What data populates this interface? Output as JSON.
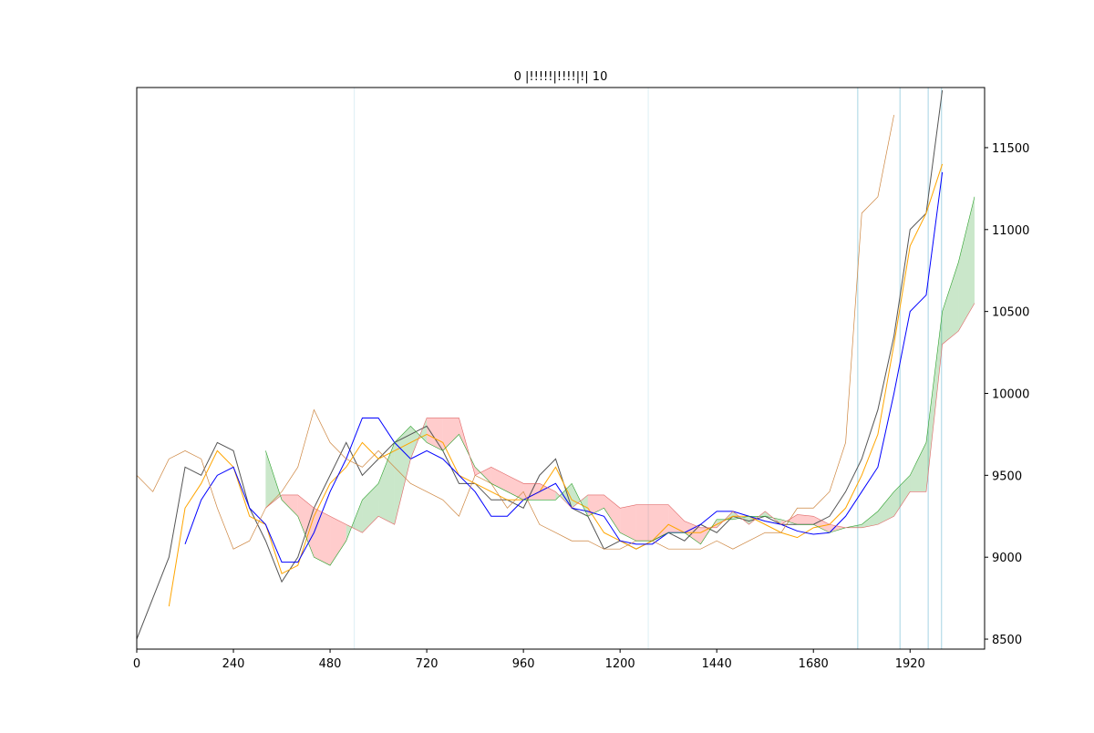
{
  "chart_data": {
    "type": "ichimoku",
    "title": "0 |!!!!!|!!!!|!| 10",
    "x": [
      0,
      40,
      80,
      120,
      160,
      200,
      240,
      280,
      320,
      360,
      400,
      440,
      480,
      520,
      560,
      600,
      640,
      680,
      720,
      760,
      800,
      840,
      880,
      920,
      960,
      1000,
      1040,
      1080,
      1120,
      1160,
      1200,
      1240,
      1280,
      1320,
      1360,
      1400,
      1440,
      1480,
      1520,
      1560,
      1600,
      1640,
      1680,
      1720,
      1760,
      1800,
      1840,
      1880,
      1920,
      1960,
      2000,
      2040,
      2080
    ],
    "series": [
      {
        "name": "close",
        "color": "#555555",
        "values": [
          8500,
          8750,
          9000,
          9550,
          9500,
          9700,
          9650,
          9300,
          9100,
          8850,
          9000,
          9300,
          9500,
          9700,
          9500,
          9600,
          9700,
          9750,
          9800,
          9650,
          9450,
          9450,
          9350,
          9350,
          9300,
          9500,
          9600,
          9300,
          9250,
          9050,
          9100,
          9050,
          9100,
          9150,
          9100,
          9200,
          9150,
          9250,
          9220,
          9250,
          9200,
          9200,
          9200,
          9250,
          9400,
          9600,
          9900,
          10350,
          11000,
          11100,
          11850,
          null,
          null
        ]
      },
      {
        "name": "tenkan",
        "color": "orange",
        "values": [
          null,
          null,
          8700,
          9300,
          9450,
          9650,
          9550,
          9250,
          9200,
          8900,
          8950,
          9250,
          9450,
          9550,
          9700,
          9600,
          9650,
          9700,
          9750,
          9700,
          9500,
          9450,
          9400,
          9350,
          9350,
          9400,
          9550,
          9350,
          9300,
          9150,
          9100,
          9050,
          9100,
          9200,
          9150,
          9150,
          9200,
          9250,
          9250,
          9200,
          9150,
          9120,
          9180,
          9200,
          9300,
          9500,
          9750,
          10300,
          10900,
          11100,
          11400,
          null,
          null
        ]
      },
      {
        "name": "kijun",
        "color": "blue",
        "values": [
          null,
          null,
          null,
          9080,
          9350,
          9500,
          9550,
          9300,
          9200,
          8970,
          8970,
          9150,
          9400,
          9600,
          9850,
          9850,
          9700,
          9600,
          9650,
          9600,
          9500,
          9400,
          9250,
          9250,
          9350,
          9400,
          9450,
          9300,
          9280,
          9250,
          9100,
          9080,
          9080,
          9150,
          9150,
          9200,
          9280,
          9280,
          9250,
          9220,
          9200,
          9160,
          9140,
          9150,
          9250,
          9400,
          9550,
          10000,
          10500,
          10600,
          11350,
          null,
          null
        ]
      },
      {
        "name": "chikou",
        "color": "peru",
        "values": [
          9500,
          9400,
          9600,
          9650,
          9600,
          9300,
          9050,
          9100,
          9300,
          9400,
          9550,
          9900,
          9700,
          9600,
          9550,
          9650,
          9550,
          9450,
          9400,
          9350,
          9250,
          9500,
          9450,
          9300,
          9400,
          9200,
          9150,
          9100,
          9100,
          9050,
          9050,
          9100,
          9100,
          9050,
          9050,
          9050,
          9100,
          9050,
          9100,
          9150,
          9150,
          9300,
          9300,
          9400,
          9700,
          11100,
          11200,
          11700,
          null,
          null,
          null,
          null,
          null
        ]
      },
      {
        "name": "span_a",
        "color": "#2ca02c",
        "values": [
          null,
          null,
          null,
          null,
          null,
          null,
          null,
          null,
          9650,
          9350,
          9250,
          9000,
          8950,
          9100,
          9350,
          9450,
          9700,
          9800,
          9700,
          9650,
          9750,
          9550,
          9450,
          9400,
          9350,
          9350,
          9350,
          9450,
          9250,
          9300,
          9150,
          9100,
          9100,
          9150,
          9150,
          9080,
          9230,
          9230,
          9250,
          9250,
          9230,
          9200,
          9200,
          9150,
          9180,
          9200,
          9280,
          9400,
          9500,
          9700,
          10500,
          10800,
          11200
        ]
      },
      {
        "name": "span_b",
        "color": "#e06666",
        "values": [
          null,
          null,
          null,
          null,
          null,
          null,
          null,
          null,
          9300,
          9380,
          9380,
          9300,
          9250,
          9200,
          9150,
          9250,
          9200,
          9600,
          9850,
          9850,
          9850,
          9500,
          9550,
          9500,
          9450,
          9450,
          9400,
          9300,
          9380,
          9380,
          9300,
          9320,
          9320,
          9320,
          9220,
          9180,
          9180,
          9280,
          9200,
          9280,
          9200,
          9260,
          9250,
          9200,
          9180,
          9180,
          9200,
          9250,
          9400,
          9400,
          10300,
          10380,
          10550
        ]
      }
    ],
    "cloud_up_color": "#2ca02c",
    "cloud_down_color": "#ff0000",
    "vlines": [
      540,
      1270,
      1790,
      1895,
      1965,
      1998
    ],
    "vline_color": "#add8e6",
    "xlim": [
      0,
      2105
    ],
    "ylim": [
      8439,
      11867
    ],
    "xticks": [
      0,
      240,
      480,
      720,
      960,
      1200,
      1440,
      1680,
      1920
    ],
    "yticks": [
      8500,
      9000,
      9500,
      10000,
      10500,
      11000,
      11500
    ]
  }
}
